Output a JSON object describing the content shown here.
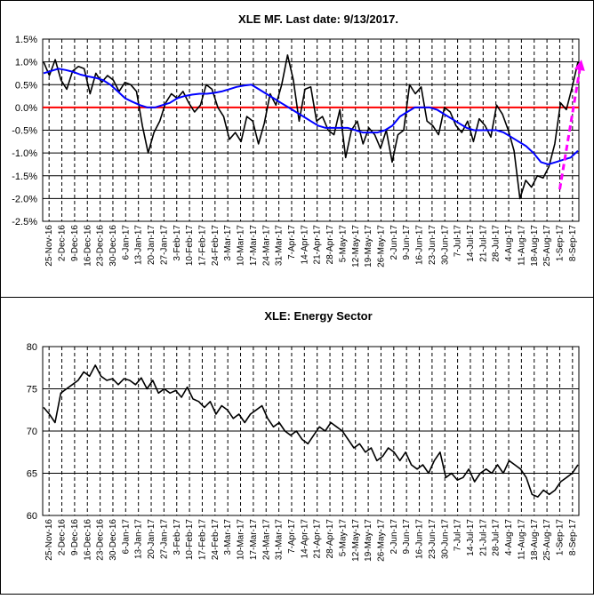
{
  "chart_data": [
    {
      "type": "line",
      "title": "XLE MF. Last date: 9/13/2017.",
      "ylim": [
        -2.5,
        1.5
      ],
      "yticks": [
        "1.5%",
        "1.0%",
        "0.5%",
        "0.0%",
        "-0.5%",
        "-1.0%",
        "-1.5%",
        "-2.0%",
        "-2.5%"
      ],
      "ytick_values": [
        1.5,
        1.0,
        0.5,
        0.0,
        -0.5,
        -1.0,
        -1.5,
        -2.0,
        -2.5
      ],
      "xticks": [
        "25-Nov-16",
        "2-Dec-16",
        "9-Dec-16",
        "16-Dec-16",
        "23-Dec-16",
        "30-Dec-16",
        "6-Jan-17",
        "13-Jan-17",
        "20-Jan-17",
        "27-Jan-17",
        "3-Feb-17",
        "10-Feb-17",
        "17-Feb-17",
        "24-Feb-17",
        "3-Mar-17",
        "10-Mar-17",
        "17-Mar-17",
        "24-Mar-17",
        "31-Mar-17",
        "7-Apr-17",
        "14-Apr-17",
        "21-Apr-17",
        "28-Apr-17",
        "5-May-17",
        "12-May-17",
        "19-May-17",
        "26-May-17",
        "2-Jun-17",
        "9-Jun-17",
        "16-Jun-17",
        "23-Jun-17",
        "30-Jun-17",
        "7-Jul-17",
        "14-Jul-17",
        "21-Jul-17",
        "28-Jul-17",
        "4-Aug-17",
        "11-Aug-17",
        "18-Aug-17",
        "25-Aug-17",
        "1-Sep-17",
        "8-Sep-17"
      ],
      "grid": true,
      "zero_line_color": "#ff0000",
      "series": [
        {
          "color": "#000000",
          "values": [
            1.0,
            0.7,
            1.05,
            0.6,
            0.4,
            0.8,
            0.9,
            0.85,
            0.3,
            0.75,
            0.55,
            0.7,
            0.6,
            0.35,
            0.55,
            0.5,
            0.35,
            -0.4,
            -1.0,
            -0.55,
            -0.3,
            0.1,
            0.3,
            0.2,
            0.35,
            0.1,
            -0.1,
            0.05,
            0.5,
            0.4,
            0.0,
            -0.2,
            -0.7,
            -0.55,
            -0.75,
            -0.2,
            -0.3,
            -0.8,
            -0.35,
            0.3,
            0.05,
            0.5,
            1.15,
            0.6,
            -0.3,
            0.4,
            0.45,
            -0.3,
            -0.2,
            -0.5,
            -0.6,
            -0.05,
            -1.1,
            -0.5,
            -0.3,
            -0.8,
            -0.45,
            -0.6,
            -0.9,
            -0.5,
            -1.2,
            -0.6,
            -0.5,
            0.5,
            0.3,
            0.45,
            -0.3,
            -0.4,
            -0.6,
            0.0,
            -0.1,
            -0.4,
            -0.55,
            -0.3,
            -0.75,
            -0.25,
            -0.4,
            -0.65,
            0.05,
            -0.15,
            -0.5,
            -0.95,
            -2.0,
            -1.6,
            -1.75,
            -1.5,
            -1.55,
            -1.3,
            -0.8,
            0.1,
            -0.05,
            0.45,
            1.0
          ]
        },
        {
          "color": "#0000ff",
          "values": [
            0.75,
            0.8,
            0.85,
            0.82,
            0.78,
            0.72,
            0.68,
            0.65,
            0.6,
            0.5,
            0.35,
            0.2,
            0.12,
            0.05,
            0.0,
            0.0,
            0.05,
            0.1,
            0.2,
            0.25,
            0.28,
            0.3,
            0.3,
            0.32,
            0.35,
            0.4,
            0.45,
            0.48,
            0.5,
            0.4,
            0.3,
            0.2,
            0.1,
            0.0,
            -0.1,
            -0.2,
            -0.3,
            -0.4,
            -0.45,
            -0.45,
            -0.45,
            -0.45,
            -0.5,
            -0.55,
            -0.55,
            -0.55,
            -0.5,
            -0.4,
            -0.2,
            -0.1,
            0.0,
            0.0,
            0.0,
            -0.05,
            -0.15,
            -0.25,
            -0.35,
            -0.45,
            -0.5,
            -0.5,
            -0.5,
            -0.5,
            -0.55,
            -0.65,
            -0.75,
            -0.85,
            -1.0,
            -1.2,
            -1.25,
            -1.2,
            -1.15,
            -1.1,
            -0.95
          ]
        }
      ],
      "annotation": {
        "type": "dashed-arrow",
        "color": "#ff00ff",
        "from": {
          "x": 40,
          "y": -1.8
        },
        "to": {
          "x": 41.7,
          "y": 1.05
        }
      }
    },
    {
      "type": "line",
      "title": "XLE: Energy Sector",
      "ylim": [
        60,
        80
      ],
      "yticks": [
        "80",
        "75",
        "70",
        "65",
        "60"
      ],
      "ytick_values": [
        80,
        75,
        70,
        65,
        60
      ],
      "xticks": [
        "25-Nov-16",
        "2-Dec-16",
        "9-Dec-16",
        "16-Dec-16",
        "23-Dec-16",
        "30-Dec-16",
        "6-Jan-17",
        "13-Jan-17",
        "20-Jan-17",
        "27-Jan-17",
        "3-Feb-17",
        "10-Feb-17",
        "17-Feb-17",
        "24-Feb-17",
        "3-Mar-17",
        "10-Mar-17",
        "17-Mar-17",
        "24-Mar-17",
        "31-Mar-17",
        "7-Apr-17",
        "14-Apr-17",
        "21-Apr-17",
        "28-Apr-17",
        "5-May-17",
        "12-May-17",
        "19-May-17",
        "26-May-17",
        "2-Jun-17",
        "9-Jun-17",
        "16-Jun-17",
        "23-Jun-17",
        "30-Jun-17",
        "7-Jul-17",
        "14-Jul-17",
        "21-Jul-17",
        "28-Jul-17",
        "4-Aug-17",
        "11-Aug-17",
        "18-Aug-17",
        "25-Aug-17",
        "1-Sep-17",
        "8-Sep-17"
      ],
      "grid": true,
      "series": [
        {
          "color": "#000000",
          "values": [
            72.8,
            72.0,
            71.0,
            74.5,
            75.0,
            75.5,
            76.0,
            77.0,
            76.5,
            77.8,
            76.5,
            76.0,
            76.2,
            75.5,
            76.2,
            76.0,
            75.5,
            76.3,
            75.0,
            76.0,
            74.5,
            75.0,
            74.5,
            74.8,
            74.0,
            75.2,
            73.8,
            73.5,
            72.8,
            73.5,
            72.0,
            73.0,
            72.5,
            71.5,
            72.0,
            71.0,
            72.0,
            72.5,
            73.0,
            71.5,
            70.5,
            71.0,
            70.0,
            69.5,
            70.0,
            69.0,
            68.5,
            69.5,
            70.5,
            70.0,
            71.0,
            70.5,
            70.0,
            69.0,
            68.0,
            68.5,
            67.5,
            68.0,
            66.5,
            67.0,
            68.0,
            67.5,
            66.5,
            67.5,
            66.0,
            65.5,
            66.0,
            65.0,
            66.5,
            67.5,
            64.5,
            65.0,
            64.2,
            64.5,
            65.5,
            64.0,
            65.0,
            65.5,
            65.0,
            66.0,
            65.0,
            66.5,
            66.0,
            65.5,
            64.5,
            62.5,
            62.2,
            63.0,
            62.5,
            63.0,
            64.0,
            64.5,
            65.0,
            66.0
          ]
        }
      ]
    }
  ]
}
